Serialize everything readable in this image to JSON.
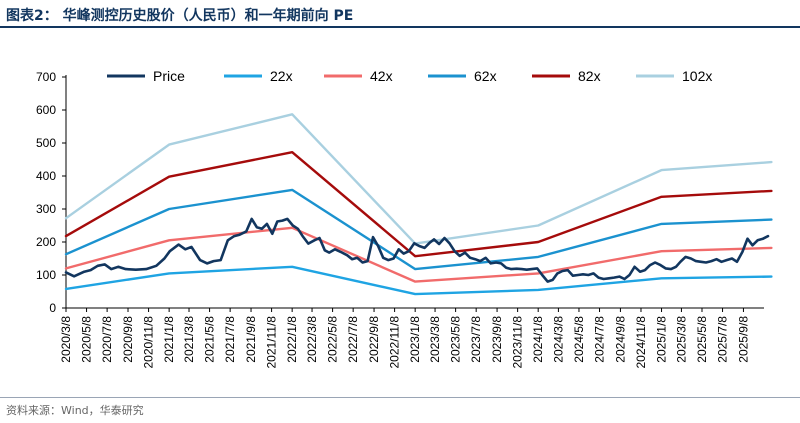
{
  "figure": {
    "title": "图表2：  华峰测控历史股价（人民币）和一年期前向 PE",
    "source": "资料来源：Wind，华泰研究"
  },
  "chart_data": {
    "type": "line",
    "title": "华峰测控历史股价（人民币）和一年期前向 PE",
    "xlabel": "",
    "ylabel": "",
    "ylim": [
      0,
      700
    ],
    "yticks": [
      0,
      100,
      200,
      300,
      400,
      500,
      600,
      700
    ],
    "grid": false,
    "legend_position": "top",
    "x_range": [
      "2020-03-08",
      "2025-11-08"
    ],
    "xtick_labels": [
      "2020/3/8",
      "2020/5/8",
      "2020/7/8",
      "2020/9/8",
      "2020/11/8",
      "2021/1/8",
      "2021/3/8",
      "2021/5/8",
      "2021/7/8",
      "2021/9/8",
      "2021/11/8",
      "2022/1/8",
      "2022/3/8",
      "2022/5/8",
      "2022/7/8",
      "2022/9/8",
      "2022/11/8",
      "2023/1/8",
      "2023/3/8",
      "2023/5/8",
      "2023/7/8",
      "2023/9/8",
      "2023/11/8",
      "2024/1/8",
      "2024/3/8",
      "2024/5/8",
      "2024/7/8",
      "2024/9/8",
      "2024/11/8",
      "2025/1/8",
      "2025/3/8",
      "2025/5/8",
      "2025/7/8",
      "2025/9/8"
    ],
    "series": [
      {
        "name": "Price",
        "color": "#12365f",
        "width": 2.6,
        "x": [
          "2020-03-08",
          "2020-04-01",
          "2020-05-01",
          "2020-05-20",
          "2020-06-10",
          "2020-07-01",
          "2020-07-20",
          "2020-08-10",
          "2020-09-01",
          "2020-10-01",
          "2020-11-01",
          "2020-12-01",
          "2020-12-25",
          "2021-01-10",
          "2021-02-05",
          "2021-02-25",
          "2021-03-15",
          "2021-04-10",
          "2021-05-01",
          "2021-05-20",
          "2021-06-10",
          "2021-07-01",
          "2021-07-20",
          "2021-08-05",
          "2021-08-25",
          "2021-09-10",
          "2021-09-25",
          "2021-10-10",
          "2021-10-25",
          "2021-11-10",
          "2021-11-25",
          "2021-12-10",
          "2021-12-25",
          "2022-01-10",
          "2022-01-25",
          "2022-02-08",
          "2022-02-25",
          "2022-03-15",
          "2022-03-30",
          "2022-04-15",
          "2022-04-28",
          "2022-05-15",
          "2022-06-01",
          "2022-06-20",
          "2022-07-05",
          "2022-07-20",
          "2022-08-05",
          "2022-08-20",
          "2022-09-05",
          "2022-09-20",
          "2022-10-05",
          "2022-10-20",
          "2022-11-05",
          "2022-11-20",
          "2022-12-05",
          "2022-12-20",
          "2023-01-05",
          "2023-01-20",
          "2023-02-05",
          "2023-02-20",
          "2023-03-05",
          "2023-03-20",
          "2023-04-05",
          "2023-04-20",
          "2023-05-05",
          "2023-05-20",
          "2023-06-05",
          "2023-06-20",
          "2023-07-05",
          "2023-07-20",
          "2023-08-05",
          "2023-08-20",
          "2023-09-05",
          "2023-09-20",
          "2023-10-05",
          "2023-10-20",
          "2023-11-05",
          "2023-11-20",
          "2023-12-05",
          "2023-12-20",
          "2024-01-05",
          "2024-01-20",
          "2024-02-05",
          "2024-02-20",
          "2024-03-05",
          "2024-03-20",
          "2024-04-05",
          "2024-04-20",
          "2024-05-05",
          "2024-05-20",
          "2024-06-05",
          "2024-06-20",
          "2024-07-05",
          "2024-07-20",
          "2024-08-05",
          "2024-08-20",
          "2024-09-05",
          "2024-09-20",
          "2024-10-05",
          "2024-10-20",
          "2024-11-05",
          "2024-11-20",
          "2024-12-05",
          "2024-12-20",
          "2025-01-05",
          "2025-01-20",
          "2025-02-05",
          "2025-02-20",
          "2025-03-05",
          "2025-03-20",
          "2025-04-05",
          "2025-04-20",
          "2025-05-05",
          "2025-05-20",
          "2025-06-05",
          "2025-06-20",
          "2025-07-05",
          "2025-07-20",
          "2025-08-05",
          "2025-08-20",
          "2025-09-05",
          "2025-09-20",
          "2025-10-05",
          "2025-10-20",
          "2025-11-05",
          "2025-11-20"
        ],
        "values": [
          108,
          96,
          110,
          115,
          128,
          132,
          118,
          125,
          118,
          116,
          118,
          128,
          150,
          172,
          192,
          178,
          185,
          145,
          135,
          142,
          145,
          205,
          218,
          222,
          232,
          270,
          245,
          240,
          255,
          225,
          262,
          265,
          270,
          250,
          240,
          218,
          195,
          205,
          212,
          175,
          168,
          178,
          170,
          160,
          148,
          152,
          138,
          142,
          215,
          188,
          152,
          145,
          150,
          178,
          165,
          172,
          196,
          188,
          182,
          198,
          208,
          194,
          212,
          196,
          172,
          158,
          168,
          152,
          148,
          142,
          152,
          135,
          138,
          135,
          122,
          118,
          119,
          118,
          116,
          118,
          120,
          100,
          80,
          85,
          105,
          112,
          115,
          98,
          100,
          102,
          100,
          105,
          92,
          88,
          90,
          92,
          95,
          88,
          100,
          125,
          110,
          115,
          130,
          138,
          130,
          120,
          118,
          125,
          140,
          155,
          150,
          142,
          140,
          138,
          142,
          148,
          140,
          145,
          150,
          140,
          170,
          210,
          190,
          205,
          210,
          218
        ]
      },
      {
        "name": "22x",
        "color": "#1fa4e3",
        "width": 2.4,
        "x": [
          "2020-03-08",
          "2021-01-08",
          "2022-01-08",
          "2023-01-08",
          "2024-01-08",
          "2025-01-08",
          "2025-11-30"
        ],
        "values": [
          58,
          105,
          125,
          42,
          55,
          90,
          95
        ]
      },
      {
        "name": "42x",
        "color": "#f16b6b",
        "width": 2.4,
        "x": [
          "2020-03-08",
          "2021-01-08",
          "2022-01-08",
          "2023-01-08",
          "2024-01-08",
          "2025-01-08",
          "2025-11-30"
        ],
        "values": [
          120,
          205,
          243,
          80,
          105,
          172,
          182
        ]
      },
      {
        "name": "62x",
        "color": "#1b92cf",
        "width": 2.4,
        "x": [
          "2020-03-08",
          "2021-01-08",
          "2022-01-08",
          "2023-01-08",
          "2024-01-08",
          "2025-01-08",
          "2025-11-30"
        ],
        "values": [
          163,
          300,
          358,
          118,
          155,
          255,
          268
        ]
      },
      {
        "name": "82x",
        "color": "#a50b0b",
        "width": 2.4,
        "x": [
          "2020-03-08",
          "2021-01-08",
          "2022-01-08",
          "2023-01-08",
          "2024-01-08",
          "2025-01-08",
          "2025-11-30"
        ],
        "values": [
          218,
          398,
          472,
          157,
          200,
          337,
          355
        ]
      },
      {
        "name": "102x",
        "color": "#a9d0e0",
        "width": 2.4,
        "x": [
          "2020-03-08",
          "2021-01-08",
          "2022-01-08",
          "2023-01-08",
          "2024-01-08",
          "2025-01-08",
          "2025-11-30"
        ],
        "values": [
          272,
          495,
          587,
          195,
          250,
          418,
          442
        ]
      }
    ]
  }
}
